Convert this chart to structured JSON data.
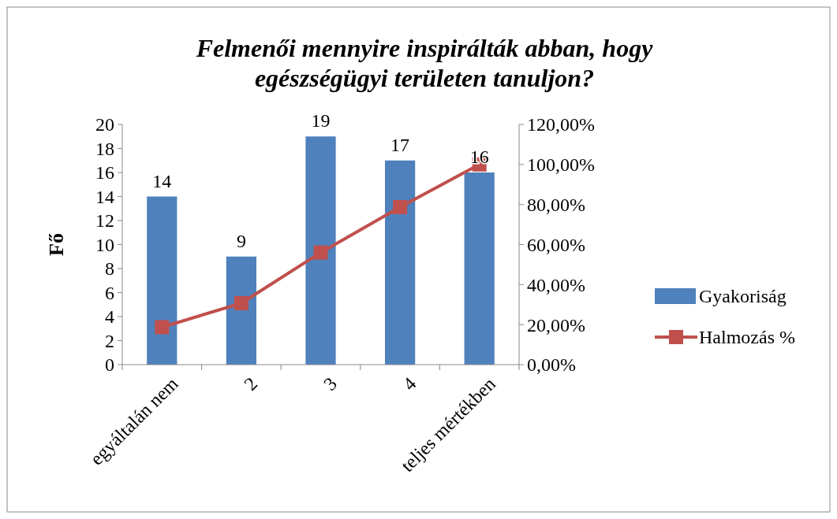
{
  "chart_data": {
    "type": "bar",
    "title": "Felmenői mennyire inspirálták abban, hogy egészségügyi területen tanuljon?",
    "ylabel": "Fő",
    "categories": [
      "egyáltalán nem",
      "2",
      "3",
      "4",
      "teljes mértékben"
    ],
    "series": [
      {
        "name": "Gyakoriság",
        "color": "#4f81bd",
        "values": [
          14,
          9,
          19,
          17,
          16
        ],
        "value_labels": [
          "14",
          "9",
          "19",
          "17",
          "16"
        ]
      },
      {
        "name": "Halmozás %",
        "type": "line",
        "axis": "y2",
        "color": "#c0504d",
        "marker": "square",
        "values": [
          18.7,
          30.7,
          56,
          78.7,
          100
        ]
      }
    ],
    "legend": "right",
    "grid": false,
    "ylim": [
      0,
      20
    ],
    "yticks": [
      0,
      2,
      4,
      6,
      8,
      10,
      12,
      14,
      16,
      18,
      20
    ],
    "y2lim": [
      0,
      120
    ],
    "y2ticks": [
      {
        "value": 0,
        "label": "0,00%"
      },
      {
        "value": 20,
        "label": "20,00%"
      },
      {
        "value": 40,
        "label": "40,00%"
      },
      {
        "value": 60,
        "label": "60,00%"
      },
      {
        "value": 80,
        "label": "80,00%"
      },
      {
        "value": 100,
        "label": "100,00%"
      },
      {
        "value": 120,
        "label": "120,00%"
      }
    ]
  }
}
